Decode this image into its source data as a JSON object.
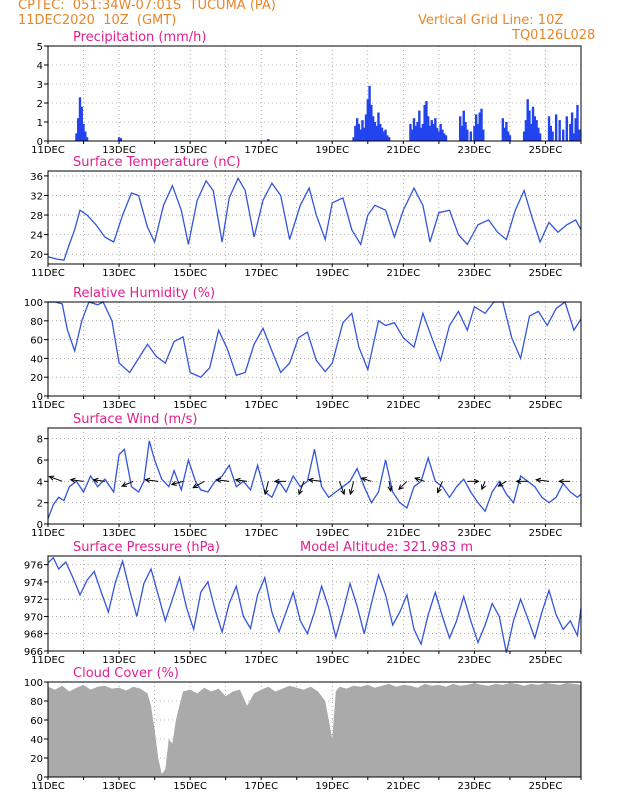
{
  "header": {
    "line1": "CPTEC:  051:34W-07:01S  TUCUMA (PA)",
    "line2": "11DEC2020  10Z  (GMT)",
    "grid_note": "Vertical Grid Line: 10Z",
    "code": "TQ0126L028"
  },
  "colors": {
    "series": "#3355dd",
    "bars": "#2244ee",
    "cloud": "#aaaaaa",
    "title": "#e0208f",
    "header": "#e8862a"
  },
  "chart_data": [
    {
      "id": "precip",
      "type": "bar",
      "title": "Precipitation (mm/h)",
      "ylim": [
        0,
        5
      ],
      "yticks": [
        0,
        1,
        2,
        3,
        4,
        5
      ],
      "xlim": [
        0,
        15
      ],
      "xticks": [
        "11DEC",
        "13DEC",
        "15DEC",
        "17DEC",
        "19DEC",
        "21DEC",
        "23DEC",
        "25DEC"
      ],
      "x": [
        0.8,
        0.85,
        0.9,
        0.95,
        1.0,
        1.05,
        1.1,
        2.0,
        2.05,
        6.2,
        8.6,
        8.65,
        8.7,
        8.75,
        8.8,
        8.85,
        8.9,
        8.95,
        9.0,
        9.05,
        9.1,
        9.15,
        9.2,
        9.25,
        9.3,
        9.35,
        9.4,
        9.45,
        9.5,
        9.55,
        9.6,
        10.2,
        10.25,
        10.3,
        10.35,
        10.4,
        10.45,
        10.5,
        10.55,
        10.6,
        10.65,
        10.7,
        10.75,
        10.8,
        10.85,
        10.9,
        10.95,
        11.0,
        11.05,
        11.1,
        11.15,
        11.2,
        11.6,
        11.65,
        11.7,
        11.75,
        11.8,
        11.9,
        12.0,
        12.05,
        12.1,
        12.15,
        12.2,
        12.25,
        12.8,
        12.85,
        12.9,
        12.95,
        13.0,
        13.4,
        13.45,
        13.5,
        13.55,
        13.6,
        13.65,
        13.7,
        13.75,
        13.8,
        13.85,
        14.1,
        14.15,
        14.2,
        14.3,
        14.4,
        14.5,
        14.6,
        14.7,
        14.75,
        14.8,
        14.85,
        14.9,
        14.95
      ],
      "values": [
        0.4,
        1.2,
        2.3,
        1.8,
        0.9,
        0.5,
        0.2,
        0.2,
        0.15,
        0.1,
        0.2,
        0.8,
        1.2,
        0.9,
        0.6,
        1.1,
        0.7,
        1.4,
        2.2,
        2.9,
        1.9,
        1.3,
        1.0,
        0.8,
        1.5,
        0.9,
        0.7,
        0.5,
        0.6,
        0.3,
        0.2,
        0.9,
        0.6,
        1.2,
        0.8,
        1.0,
        1.6,
        0.7,
        0.9,
        1.9,
        2.1,
        1.3,
        0.8,
        1.1,
        0.9,
        1.2,
        0.7,
        0.5,
        0.9,
        0.6,
        0.4,
        0.3,
        1.3,
        0.8,
        1.6,
        1.0,
        0.6,
        0.5,
        0.8,
        1.4,
        0.9,
        1.5,
        1.7,
        0.6,
        1.2,
        0.7,
        1.0,
        0.5,
        0.3,
        0.5,
        1.1,
        2.2,
        1.6,
        0.9,
        1.8,
        1.3,
        1.1,
        0.7,
        0.4,
        1.3,
        0.8,
        0.5,
        1.4,
        1.1,
        0.6,
        1.3,
        0.9,
        1.5,
        0.4,
        1.2,
        1.9,
        0.6
      ]
    },
    {
      "id": "temp",
      "type": "line",
      "title": "Surface Temperature (nC)",
      "ylim": [
        18,
        37
      ],
      "yticks": [
        20,
        24,
        28,
        32,
        36
      ],
      "xlim": [
        0,
        15
      ],
      "xticks": [
        "11DEC",
        "13DEC",
        "15DEC",
        "17DEC",
        "19DEC",
        "21DEC",
        "23DEC",
        "25DEC"
      ],
      "x": [
        0.0,
        0.25,
        0.45,
        0.6,
        0.75,
        0.9,
        1.1,
        1.35,
        1.6,
        1.85,
        2.1,
        2.35,
        2.55,
        2.8,
        3.0,
        3.25,
        3.5,
        3.75,
        3.95,
        4.2,
        4.45,
        4.65,
        4.9,
        5.1,
        5.35,
        5.55,
        5.8,
        6.05,
        6.3,
        6.55,
        6.8,
        7.1,
        7.35,
        7.55,
        7.8,
        8.0,
        8.3,
        8.55,
        8.8,
        9.0,
        9.2,
        9.5,
        9.75,
        10.0,
        10.3,
        10.55,
        10.75,
        11.0,
        11.3,
        11.55,
        11.8,
        12.1,
        12.4,
        12.65,
        12.9,
        13.15,
        13.4,
        13.6,
        13.85,
        14.1,
        14.35,
        14.6,
        14.85,
        15.0
      ],
      "values": [
        19.5,
        19.0,
        18.8,
        22.0,
        25.0,
        29.0,
        28.0,
        26.0,
        23.5,
        22.5,
        28.0,
        32.5,
        32.0,
        25.5,
        22.5,
        30.0,
        34.0,
        29.0,
        22.0,
        31.0,
        35.0,
        33.0,
        22.5,
        31.5,
        35.5,
        33.0,
        23.5,
        31.0,
        34.5,
        32.0,
        23.0,
        30.0,
        33.5,
        28.0,
        23.0,
        30.5,
        31.5,
        25.0,
        22.0,
        28.0,
        30.0,
        29.0,
        23.5,
        29.0,
        33.5,
        30.0,
        22.5,
        28.5,
        29.0,
        24.0,
        22.0,
        26.0,
        27.0,
        24.5,
        23.0,
        29.0,
        33.0,
        28.0,
        22.5,
        26.5,
        24.5,
        26.0,
        27.0,
        25.0
      ]
    },
    {
      "id": "rh",
      "type": "line",
      "title": "Relative Humidity (%)",
      "ylim": [
        0,
        100
      ],
      "yticks": [
        0,
        20,
        40,
        60,
        80,
        100
      ],
      "xlim": [
        0,
        15
      ],
      "xticks": [
        "11DEC",
        "13DEC",
        "15DEC",
        "17DEC",
        "19DEC",
        "21DEC",
        "23DEC",
        "25DEC"
      ],
      "x": [
        0.0,
        0.2,
        0.4,
        0.55,
        0.75,
        0.95,
        1.15,
        1.4,
        1.55,
        1.8,
        2.0,
        2.3,
        2.55,
        2.8,
        3.05,
        3.3,
        3.55,
        3.8,
        4.0,
        4.3,
        4.55,
        4.8,
        5.05,
        5.3,
        5.55,
        5.8,
        6.05,
        6.3,
        6.55,
        6.8,
        7.05,
        7.3,
        7.55,
        7.8,
        8.0,
        8.3,
        8.55,
        8.75,
        9.0,
        9.3,
        9.5,
        9.75,
        10.0,
        10.3,
        10.55,
        10.8,
        11.05,
        11.3,
        11.55,
        11.8,
        12.0,
        12.3,
        12.55,
        12.8,
        13.05,
        13.3,
        13.55,
        13.8,
        14.05,
        14.3,
        14.55,
        14.8,
        15.0
      ],
      "values": [
        100,
        100,
        98,
        70,
        48,
        80,
        100,
        97,
        100,
        80,
        35,
        25,
        40,
        55,
        42,
        35,
        58,
        63,
        25,
        20,
        30,
        70,
        50,
        22,
        25,
        55,
        72,
        48,
        25,
        35,
        62,
        68,
        38,
        26,
        35,
        78,
        88,
        52,
        28,
        80,
        75,
        78,
        62,
        52,
        88,
        62,
        38,
        75,
        90,
        70,
        95,
        88,
        100,
        100,
        62,
        40,
        85,
        90,
        75,
        93,
        100,
        70,
        82
      ]
    },
    {
      "id": "wind",
      "type": "line",
      "title": "Surface Wind (m/s)",
      "ylim": [
        0,
        9
      ],
      "yticks": [
        0,
        2,
        4,
        6,
        8
      ],
      "xlim": [
        0,
        15
      ],
      "xticks": [
        "11DEC",
        "13DEC",
        "15DEC",
        "17DEC",
        "19DEC",
        "21DEC",
        "23DEC",
        "25DEC"
      ],
      "x": [
        0.0,
        0.15,
        0.3,
        0.45,
        0.6,
        0.8,
        1.0,
        1.2,
        1.4,
        1.6,
        1.85,
        2.0,
        2.15,
        2.35,
        2.55,
        2.7,
        2.85,
        3.0,
        3.2,
        3.4,
        3.55,
        3.75,
        3.95,
        4.15,
        4.3,
        4.5,
        4.7,
        4.9,
        5.1,
        5.3,
        5.5,
        5.7,
        5.9,
        6.1,
        6.3,
        6.5,
        6.7,
        6.9,
        7.1,
        7.3,
        7.5,
        7.7,
        7.9,
        8.1,
        8.3,
        8.5,
        8.7,
        8.9,
        9.1,
        9.3,
        9.5,
        9.7,
        9.9,
        10.1,
        10.3,
        10.5,
        10.7,
        10.9,
        11.1,
        11.3,
        11.5,
        11.7,
        11.9,
        12.1,
        12.3,
        12.5,
        12.7,
        12.9,
        13.1,
        13.3,
        13.5,
        13.7,
        13.9,
        14.1,
        14.3,
        14.5,
        14.7,
        14.9,
        15.0
      ],
      "values": [
        0.5,
        1.8,
        2.5,
        2.2,
        3.5,
        4.0,
        3.0,
        4.5,
        3.5,
        4.2,
        3.0,
        6.5,
        7.0,
        3.5,
        3.0,
        4.0,
        7.8,
        6.0,
        4.2,
        3.5,
        5.0,
        3.2,
        6.0,
        4.0,
        3.2,
        3.0,
        4.0,
        4.5,
        5.5,
        3.5,
        4.0,
        3.2,
        5.5,
        3.0,
        2.5,
        4.0,
        3.0,
        4.5,
        3.5,
        4.0,
        7.0,
        3.5,
        2.5,
        3.0,
        3.5,
        4.0,
        5.2,
        3.5,
        2.0,
        3.0,
        6.0,
        3.0,
        2.0,
        1.5,
        3.5,
        4.0,
        6.2,
        4.0,
        3.5,
        2.5,
        3.5,
        4.2,
        3.0,
        2.0,
        1.2,
        3.0,
        4.0,
        2.8,
        2.0,
        4.5,
        4.0,
        3.5,
        2.5,
        2.0,
        2.5,
        3.8,
        3.0,
        2.5,
        2.8
      ],
      "arrow_x": [
        0.4,
        1.0,
        1.6,
        2.4,
        3.1,
        3.8,
        4.4,
        5.1,
        5.6,
        6.2,
        6.7,
        7.2,
        7.7,
        8.2,
        8.6,
        9.1,
        9.6,
        10.1,
        10.6,
        11.1,
        11.8,
        12.3,
        12.9,
        13.5,
        14.1,
        14.7
      ],
      "arrow_u": [
        -4.0,
        -4.0,
        -3.5,
        -3.5,
        -4.0,
        -3.5,
        -3.5,
        -4.0,
        -3.5,
        -1.0,
        -3.5,
        -1.5,
        -4.0,
        1.5,
        -1.0,
        -3.0,
        0.5,
        -2.5,
        -3.0,
        -1.5,
        3.5,
        -1.0,
        -2.5,
        -3.5,
        -4.0,
        -3.5
      ],
      "arrow_v": [
        1.5,
        0.5,
        0.5,
        -1.5,
        0.5,
        -1.0,
        -2.0,
        0.5,
        0.5,
        -4.0,
        0.0,
        -4.0,
        0.5,
        -4.0,
        -4.0,
        1.0,
        -3.0,
        -2.5,
        1.0,
        -3.5,
        0.0,
        -2.5,
        -1.5,
        0.0,
        0.5,
        0.0
      ]
    },
    {
      "id": "pres",
      "type": "line",
      "title": "Surface Pressure (hPa)",
      "extra_label": "Model Altitude: 321.983 m",
      "ylim": [
        966,
        977
      ],
      "yticks": [
        966,
        968,
        970,
        972,
        974,
        976
      ],
      "xlim": [
        0,
        15
      ],
      "xticks": [
        "11DEC",
        "13DEC",
        "15DEC",
        "17DEC",
        "19DEC",
        "21DEC",
        "23DEC",
        "25DEC"
      ],
      "x": [
        0.0,
        0.15,
        0.3,
        0.5,
        0.7,
        0.9,
        1.1,
        1.3,
        1.5,
        1.7,
        1.9,
        2.1,
        2.3,
        2.5,
        2.7,
        2.9,
        3.1,
        3.3,
        3.5,
        3.7,
        3.9,
        4.1,
        4.3,
        4.5,
        4.7,
        4.9,
        5.1,
        5.3,
        5.5,
        5.7,
        5.9,
        6.1,
        6.3,
        6.5,
        6.7,
        6.9,
        7.1,
        7.3,
        7.5,
        7.7,
        7.9,
        8.1,
        8.3,
        8.5,
        8.7,
        8.9,
        9.1,
        9.3,
        9.5,
        9.7,
        9.9,
        10.1,
        10.3,
        10.5,
        10.7,
        10.9,
        11.1,
        11.3,
        11.5,
        11.7,
        11.9,
        12.1,
        12.3,
        12.5,
        12.7,
        12.9,
        13.1,
        13.3,
        13.5,
        13.7,
        13.9,
        14.1,
        14.3,
        14.5,
        14.7,
        14.9,
        15.0
      ],
      "values": [
        976.2,
        976.8,
        975.5,
        976.3,
        974.5,
        972.5,
        974.2,
        975.2,
        972.8,
        970.5,
        974.0,
        976.4,
        973.0,
        970.0,
        973.8,
        975.5,
        972.5,
        969.5,
        972.0,
        974.5,
        971.0,
        968.5,
        972.8,
        974.0,
        970.8,
        968.2,
        971.5,
        973.5,
        970.0,
        968.6,
        972.5,
        974.5,
        970.5,
        968.2,
        970.5,
        972.8,
        969.5,
        968.0,
        970.5,
        973.5,
        971.0,
        967.6,
        970.5,
        973.8,
        971.2,
        968.0,
        971.5,
        974.8,
        972.5,
        969.0,
        970.5,
        972.5,
        968.5,
        966.8,
        970.2,
        972.8,
        970.0,
        967.5,
        969.5,
        972.3,
        969.5,
        967.0,
        969.0,
        971.5,
        970.0,
        965.8,
        969.5,
        972.0,
        969.8,
        967.5,
        970.5,
        973.0,
        970.2,
        968.5,
        969.5,
        967.8,
        971.0
      ]
    },
    {
      "id": "cloud",
      "type": "area",
      "title": "Cloud Cover (%)",
      "ylim": [
        0,
        100
      ],
      "yticks": [
        0,
        20,
        40,
        60,
        80,
        100
      ],
      "xlim": [
        0,
        15
      ],
      "xticks": [
        "11DEC",
        "13DEC",
        "15DEC",
        "17DEC",
        "19DEC",
        "21DEC",
        "23DEC",
        "25DEC"
      ],
      "x": [
        0.0,
        0.2,
        0.4,
        0.6,
        0.8,
        1.0,
        1.2,
        1.4,
        1.6,
        1.8,
        2.0,
        2.2,
        2.4,
        2.6,
        2.8,
        2.9,
        3.0,
        3.1,
        3.2,
        3.3,
        3.4,
        3.5,
        3.6,
        3.8,
        4.0,
        4.2,
        4.4,
        4.6,
        4.8,
        5.0,
        5.2,
        5.4,
        5.6,
        5.8,
        6.0,
        6.2,
        6.4,
        6.6,
        6.8,
        7.0,
        7.2,
        7.4,
        7.6,
        7.8,
        8.0,
        8.1,
        8.2,
        8.4,
        8.6,
        8.8,
        9.0,
        9.2,
        9.4,
        9.6,
        9.8,
        10.0,
        10.2,
        10.4,
        10.6,
        10.8,
        11.0,
        11.2,
        11.4,
        11.6,
        11.8,
        12.0,
        12.2,
        12.4,
        12.6,
        12.8,
        13.0,
        13.2,
        13.4,
        13.6,
        13.8,
        14.0,
        14.2,
        14.4,
        14.6,
        14.8,
        15.0
      ],
      "values": [
        95,
        92,
        96,
        90,
        94,
        97,
        92,
        95,
        96,
        93,
        94,
        91,
        95,
        93,
        88,
        75,
        50,
        20,
        3,
        8,
        40,
        35,
        60,
        90,
        92,
        88,
        94,
        90,
        93,
        85,
        90,
        92,
        75,
        88,
        92,
        95,
        90,
        93,
        96,
        94,
        92,
        95,
        90,
        80,
        40,
        90,
        95,
        93,
        96,
        95,
        97,
        94,
        96,
        98,
        95,
        97,
        96,
        94,
        98,
        96,
        97,
        95,
        98,
        96,
        97,
        99,
        97,
        96,
        98,
        97,
        99,
        98,
        96,
        98,
        97,
        99,
        98,
        97,
        99,
        98,
        97
      ]
    }
  ]
}
